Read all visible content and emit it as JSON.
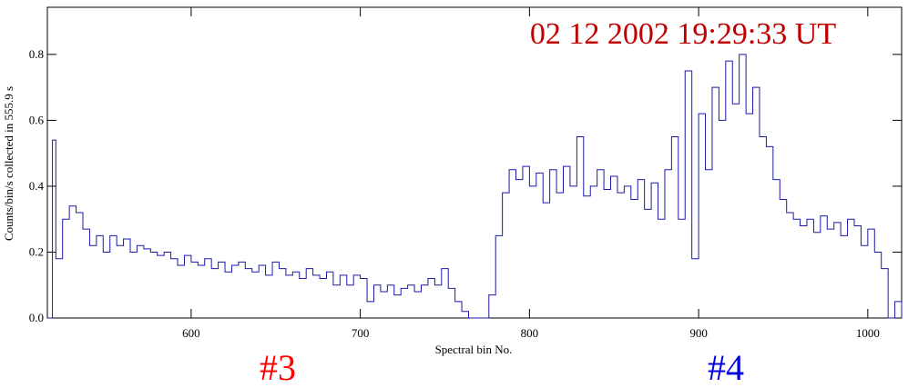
{
  "chart_data": {
    "type": "line",
    "title": "02 12 2002   19:29:33 UT",
    "title_color": "#c00000",
    "x_label": "Spectral bin No.",
    "y_label": "Counts/bin/s collected in  555.9 s",
    "color": "#1a1aa8",
    "step": true,
    "xlim": [
      515,
      1020
    ],
    "ylim": [
      0,
      0.943
    ],
    "xticks": [
      600,
      700,
      800,
      900,
      1000
    ],
    "yticks": [
      {
        "value": 0,
        "label": "0.0"
      },
      0.2,
      0.4,
      0.6,
      0.8
    ],
    "annotations": [
      {
        "text": "#3",
        "color": "#ff0000"
      },
      {
        "text": "#4",
        "color": "#0000e0"
      }
    ],
    "x": [
      515,
      518,
      520,
      524,
      528,
      532,
      536,
      540,
      544,
      548,
      552,
      556,
      560,
      564,
      568,
      572,
      576,
      580,
      584,
      588,
      592,
      596,
      600,
      604,
      608,
      612,
      616,
      620,
      624,
      628,
      632,
      636,
      640,
      644,
      648,
      652,
      656,
      660,
      664,
      668,
      672,
      676,
      680,
      684,
      688,
      692,
      696,
      700,
      704,
      708,
      712,
      716,
      720,
      724,
      728,
      732,
      736,
      740,
      744,
      748,
      752,
      756,
      760,
      764,
      768,
      772,
      776,
      780,
      784,
      788,
      792,
      796,
      800,
      804,
      808,
      812,
      816,
      820,
      824,
      828,
      832,
      836,
      840,
      844,
      848,
      852,
      856,
      860,
      864,
      868,
      872,
      876,
      880,
      884,
      888,
      892,
      896,
      900,
      904,
      908,
      912,
      916,
      920,
      924,
      928,
      932,
      936,
      940,
      944,
      948,
      952,
      956,
      960,
      964,
      968,
      972,
      976,
      980,
      984,
      988,
      992,
      996,
      1000,
      1004,
      1008,
      1012,
      1016,
      1020
    ],
    "values": [
      0,
      0.54,
      0.18,
      0.3,
      0.34,
      0.32,
      0.27,
      0.22,
      0.25,
      0.2,
      0.25,
      0.22,
      0.24,
      0.2,
      0.22,
      0.21,
      0.2,
      0.19,
      0.2,
      0.18,
      0.16,
      0.19,
      0.17,
      0.16,
      0.18,
      0.15,
      0.17,
      0.14,
      0.16,
      0.17,
      0.15,
      0.14,
      0.16,
      0.13,
      0.17,
      0.15,
      0.13,
      0.14,
      0.12,
      0.15,
      0.13,
      0.12,
      0.14,
      0.1,
      0.13,
      0.1,
      0.13,
      0.12,
      0.05,
      0.1,
      0.08,
      0.1,
      0.07,
      0.09,
      0.1,
      0.08,
      0.1,
      0.12,
      0.1,
      0.15,
      0.09,
      0.05,
      0.02,
      0,
      0,
      0,
      0.07,
      0.25,
      0.38,
      0.45,
      0.42,
      0.46,
      0.4,
      0.44,
      0.35,
      0.45,
      0.38,
      0.46,
      0.4,
      0.55,
      0.37,
      0.4,
      0.45,
      0.39,
      0.43,
      0.38,
      0.4,
      0.36,
      0.42,
      0.33,
      0.41,
      0.3,
      0.45,
      0.55,
      0.3,
      0.75,
      0.18,
      0.62,
      0.45,
      0.7,
      0.6,
      0.78,
      0.65,
      0.8,
      0.62,
      0.7,
      0.55,
      0.52,
      0.42,
      0.36,
      0.32,
      0.3,
      0.28,
      0.3,
      0.26,
      0.31,
      0.27,
      0.29,
      0.25,
      0.3,
      0.28,
      0.22,
      0.27,
      0.2,
      0.15,
      0,
      0.05,
      0
    ]
  }
}
